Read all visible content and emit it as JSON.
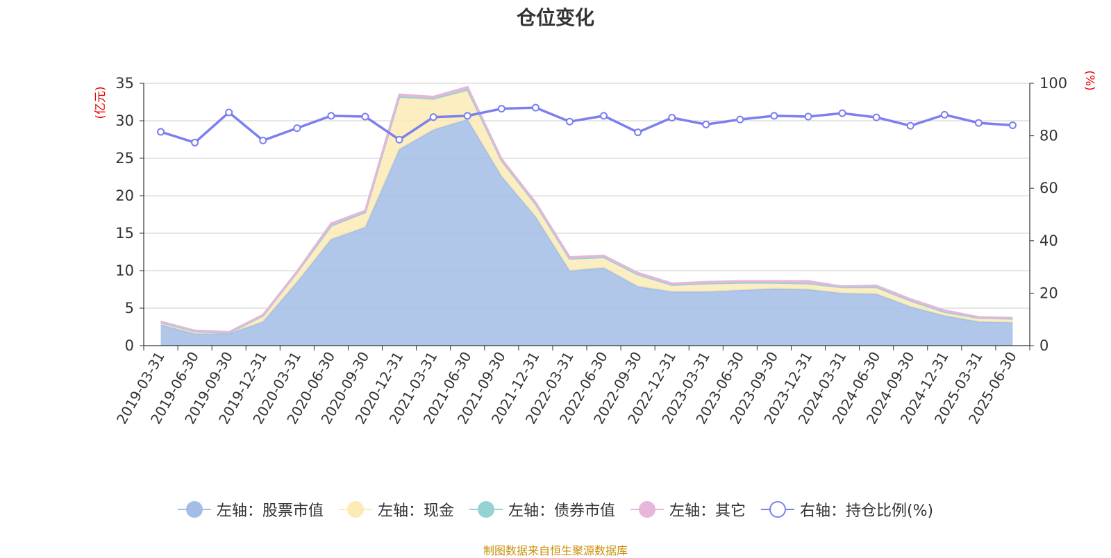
{
  "chart_data": {
    "type": "area",
    "title": "仓位变化",
    "y_left_unit": "(亿元)",
    "y_right_unit": "(%)",
    "y_left_ticks": [
      "0",
      "5",
      "10",
      "15",
      "20",
      "25",
      "30",
      "35"
    ],
    "y_right_ticks": [
      "0",
      "20",
      "40",
      "60",
      "80",
      "100"
    ],
    "ylim_left": [
      0,
      35
    ],
    "ylim_right": [
      0,
      100
    ],
    "grid": true,
    "legend_position": "bottom",
    "x": [
      "2019-03-31",
      "2019-06-30",
      "2019-09-30",
      "2019-12-31",
      "2020-03-31",
      "2020-06-30",
      "2020-09-30",
      "2020-12-31",
      "2021-03-31",
      "2021-06-30",
      "2021-09-30",
      "2021-12-31",
      "2022-03-31",
      "2022-06-30",
      "2022-09-30",
      "2022-12-31",
      "2023-03-31",
      "2023-06-30",
      "2023-09-30",
      "2023-12-31",
      "2024-03-31",
      "2024-06-30",
      "2024-09-30",
      "2024-12-31",
      "2025-03-31",
      "2025-06-30"
    ],
    "series": [
      {
        "name": "左轴：股票市值",
        "axis": "left",
        "stack": true,
        "color": "#a3bde6",
        "values": [
          2.8,
          1.6,
          1.6,
          3.2,
          8.5,
          14.2,
          15.8,
          26.2,
          28.8,
          30.2,
          22.6,
          17.2,
          10.0,
          10.4,
          7.9,
          7.2,
          7.2,
          7.4,
          7.6,
          7.5,
          7.0,
          6.9,
          5.2,
          4.0,
          3.2,
          3.1
        ]
      },
      {
        "name": "左轴：现金",
        "axis": "left",
        "stack": true,
        "color": "#fcebb5",
        "values": [
          0.3,
          0.3,
          0.1,
          0.8,
          1.3,
          1.8,
          2.0,
          6.9,
          4.0,
          3.8,
          2.1,
          1.7,
          1.6,
          1.4,
          1.6,
          0.9,
          1.1,
          1.0,
          0.8,
          0.8,
          0.8,
          0.9,
          0.8,
          0.5,
          0.5,
          0.5
        ]
      },
      {
        "name": "左轴：债券市值",
        "axis": "left",
        "stack": true,
        "color": "#95d3d3",
        "values": [
          0.0,
          0.0,
          0.0,
          0.0,
          0.0,
          0.0,
          0.0,
          0.1,
          0.2,
          0.2,
          0.0,
          0.0,
          0.0,
          0.0,
          0.0,
          0.0,
          0.0,
          0.0,
          0.0,
          0.0,
          0.0,
          0.0,
          0.0,
          0.0,
          0.0,
          0.0
        ]
      },
      {
        "name": "左轴：其它",
        "axis": "left",
        "stack": true,
        "color": "#e6b6db",
        "values": [
          0.1,
          0.1,
          0.1,
          0.1,
          0.1,
          0.3,
          0.2,
          0.3,
          0.2,
          0.3,
          0.2,
          0.2,
          0.2,
          0.2,
          0.2,
          0.2,
          0.2,
          0.2,
          0.2,
          0.3,
          0.1,
          0.2,
          0.2,
          0.2,
          0.1,
          0.1
        ]
      },
      {
        "name": "右轴：持仓比例(%)",
        "axis": "right",
        "stack": false,
        "color": "#7b7fef",
        "values": [
          81.5,
          77.4,
          88.9,
          78.2,
          82.9,
          87.6,
          87.3,
          78.5,
          87.1,
          87.6,
          90.3,
          90.7,
          85.4,
          87.6,
          81.3,
          86.9,
          84.3,
          86.2,
          87.6,
          87.3,
          88.6,
          87.0,
          83.8,
          88.0,
          84.9,
          84.0
        ]
      }
    ]
  },
  "footer": {
    "source": "制图数据来自恒生聚源数据库"
  }
}
